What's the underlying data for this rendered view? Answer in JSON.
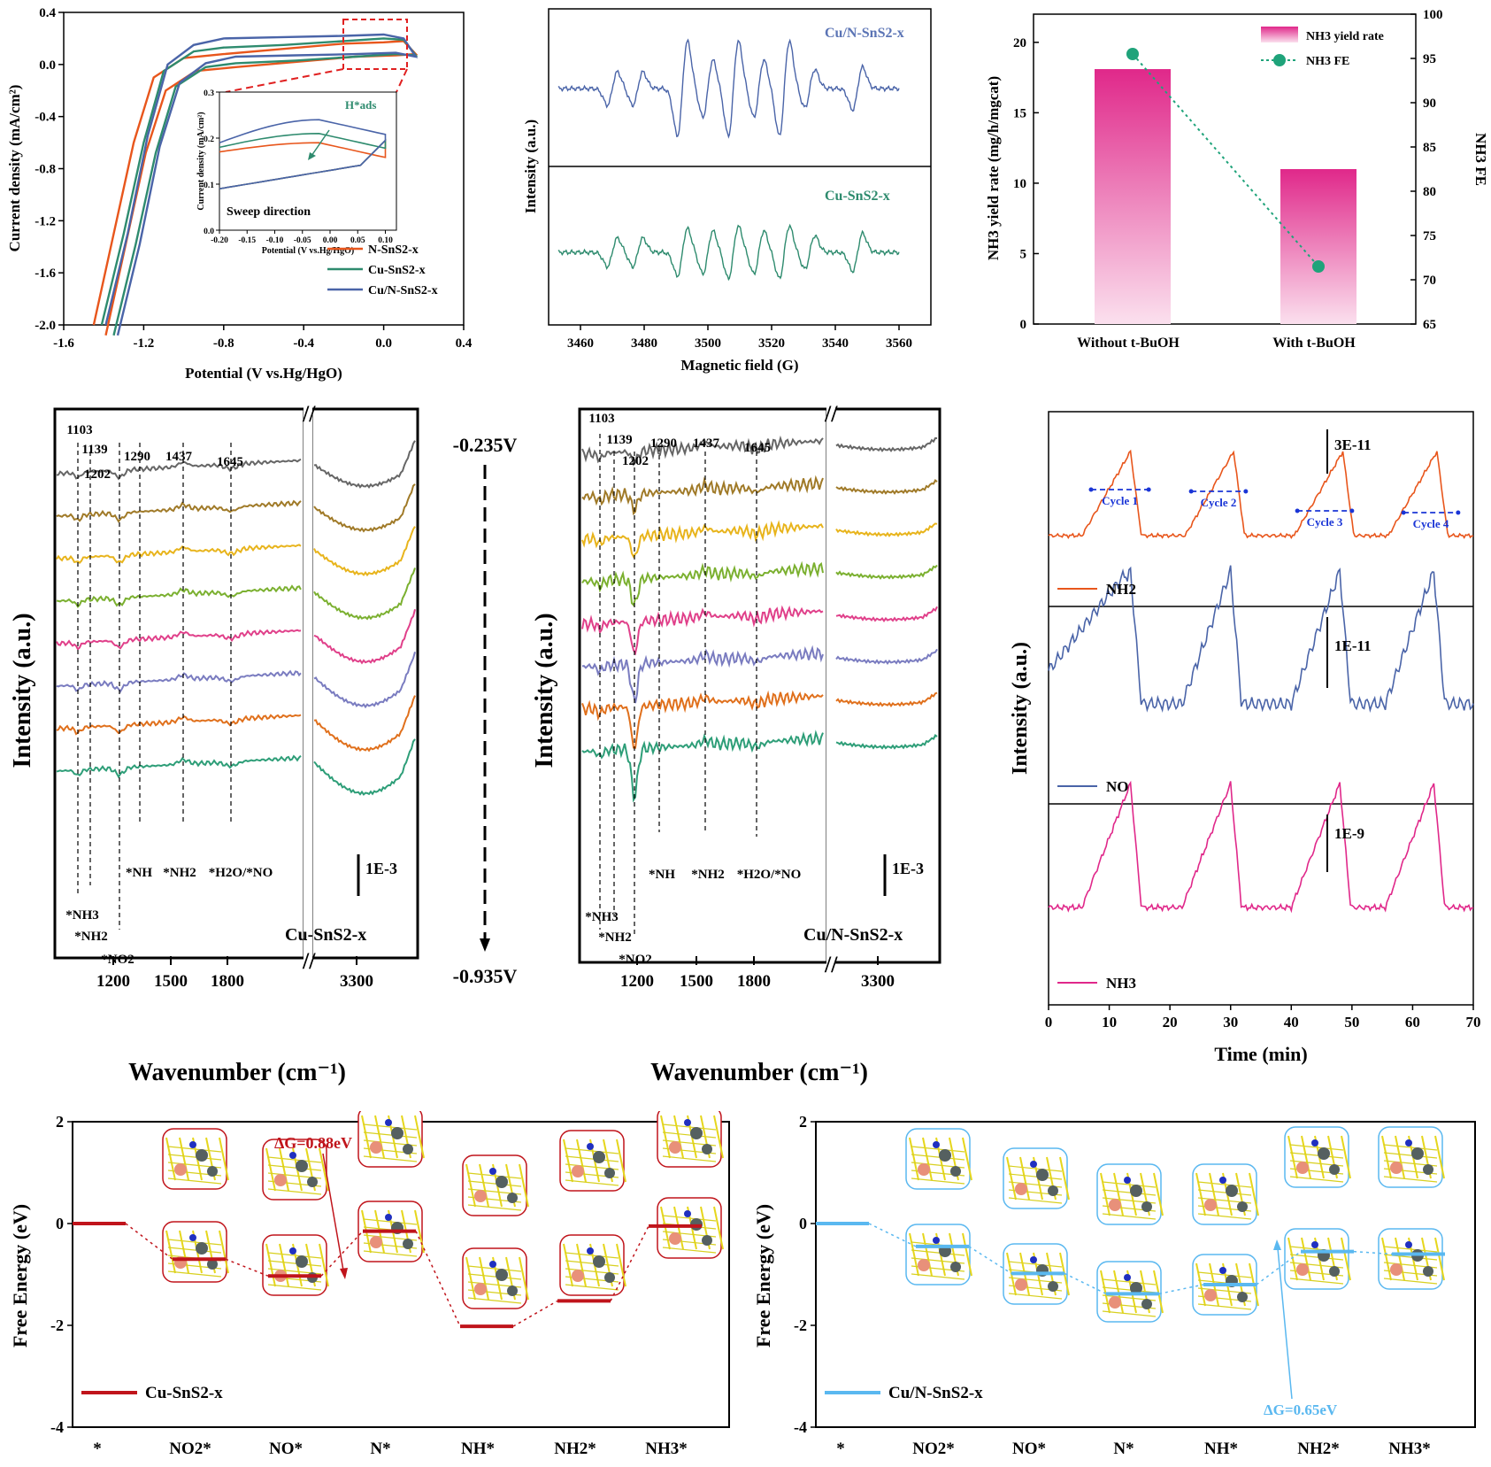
{
  "colors": {
    "nsns": "#e8561c",
    "cusns": "#2e8b6e",
    "cunsns": "#4a64a8",
    "pink": "#e0288a",
    "pink_light": "#f7c8e0",
    "green_dot": "#1fa37a",
    "blue_ed": "#5ab8f0",
    "red_ed": "#c0141b",
    "blue_text": "#5b74b5",
    "green_text": "#2e8b6e",
    "dashed_red": "#e02020"
  },
  "icons": [
    "molecular-structure-icon",
    "dashed-arrow-down-icon",
    "scale-bar-icon"
  ],
  "chart_data": [
    {
      "id": "cv",
      "type": "line",
      "xlabel": "Potential (V vs.Hg/HgO)",
      "ylabel": "Current density (mA/cm²)",
      "xlim": [
        -1.6,
        0.4
      ],
      "ylim": [
        -2.0,
        0.4
      ],
      "x_ticks": [
        "-1.6",
        "-1.2",
        "-0.8",
        "-0.4",
        "0.0",
        "0.4"
      ],
      "y_ticks": [
        "-2.0",
        "-1.6",
        "-1.2",
        "-0.8",
        "-0.4",
        "0.0",
        "0.4"
      ],
      "legend": [
        "N-SnS2-x",
        "Cu-SnS2-x",
        "Cu/N-SnS2-x"
      ],
      "legend_position": "bottom-right",
      "series": [
        {
          "name": "N-SnS2-x",
          "x": [
            -1.45,
            -1.35,
            -1.25,
            -1.15,
            -1.0,
            -0.8,
            -0.5,
            -0.2,
            0.0,
            0.1
          ],
          "y": [
            -2.0,
            -1.3,
            -0.6,
            -0.1,
            0.05,
            0.08,
            0.12,
            0.16,
            0.17,
            0.18
          ]
        },
        {
          "name": "Cu-SnS2-x",
          "x": [
            -1.41,
            -1.3,
            -1.2,
            -1.1,
            -0.95,
            -0.8,
            -0.5,
            -0.2,
            0.0,
            0.1
          ],
          "y": [
            -2.0,
            -1.3,
            -0.6,
            -0.05,
            0.1,
            0.13,
            0.15,
            0.18,
            0.2,
            0.19
          ]
        },
        {
          "name": "Cu/N-SnS2-x",
          "x": [
            -1.39,
            -1.28,
            -1.18,
            -1.08,
            -0.95,
            -0.8,
            -0.5,
            -0.2,
            0.0,
            0.1
          ],
          "y": [
            -2.0,
            -1.3,
            -0.55,
            -0.0,
            0.15,
            0.2,
            0.21,
            0.22,
            0.23,
            0.2
          ]
        }
      ],
      "inset": {
        "xlabel": "Potential (V vs.Hg/HgO)",
        "ylabel": "Current density (mA/cm²)",
        "xlim": [
          -0.2,
          0.12
        ],
        "ylim": [
          0.0,
          0.3
        ],
        "x_ticks": [
          "-0.20",
          "-0.15",
          "-0.10",
          "-0.05",
          "0.00",
          "0.05",
          "0.10"
        ],
        "y_ticks": [
          "0.0",
          "0.1",
          "0.2",
          "0.3"
        ],
        "annotations": [
          "Sweep direction",
          "H*ads"
        ]
      }
    },
    {
      "id": "epr",
      "type": "line",
      "xlabel": "Magnetic field (G)",
      "ylabel": "Intensity (a.u.)",
      "xlim": [
        3450,
        3570
      ],
      "x_ticks": [
        "3460",
        "3480",
        "3500",
        "3520",
        "3540",
        "3560"
      ],
      "line_positions": [
        3470,
        3478,
        3492,
        3500,
        3508,
        3516,
        3524,
        3532,
        3547
      ],
      "line_amplitudes_top": [
        0.35,
        0.35,
        1.0,
        0.6,
        1.0,
        0.6,
        1.0,
        0.4,
        0.45
      ],
      "line_amplitudes_bottom": [
        0.3,
        0.3,
        0.5,
        0.45,
        0.55,
        0.45,
        0.55,
        0.35,
        0.4
      ],
      "labels": [
        "Cu/N-SnS2-x",
        "Cu-SnS2-x"
      ]
    },
    {
      "id": "nh3",
      "type": "bar",
      "categories": [
        "Without t-BuOH",
        "With t-BuOH"
      ],
      "series": [
        {
          "name": "NH3 yield rate",
          "values": [
            18.1,
            11.0
          ]
        },
        {
          "name": "NH3 FE",
          "values": [
            95.5,
            71.5
          ]
        }
      ],
      "ylabel": "NH3 yield rate (mg/h/mgcat)",
      "y2label": "NH3 FE",
      "ylim": [
        0,
        22
      ],
      "y2lim": [
        65,
        100
      ],
      "y_ticks": [
        "0",
        "5",
        "10",
        "15",
        "20"
      ],
      "y2_ticks": [
        "65",
        "70",
        "75",
        "80",
        "85",
        "90",
        "95",
        "100"
      ],
      "legend_position": "top-right"
    },
    {
      "id": "ir_cu",
      "type": "line",
      "xlabel": "Wavenumber (cm⁻¹)",
      "ylabel": "Intensity (a.u.)",
      "x_ticks": [
        "1200",
        "1500",
        "1800",
        "3300"
      ],
      "peaks": [
        "1103",
        "1139",
        "1202",
        "1290",
        "1437",
        "1645"
      ],
      "species": [
        "*NH3",
        "*NH2",
        "*NO2",
        "*NH",
        "*NH2",
        "*H2O/*NO"
      ],
      "scale": "1E-3",
      "sample": "Cu-SnS2-x",
      "n_spectra": 8
    },
    {
      "id": "ir_cun",
      "type": "line",
      "xlabel": "Wavenumber (cm⁻¹)",
      "ylabel": "Intensity (a.u.)",
      "x_ticks": [
        "1200",
        "1500",
        "1800",
        "3300"
      ],
      "peaks": [
        "1103",
        "1139",
        "1202",
        "1290",
        "1437",
        "1645"
      ],
      "species": [
        "*NH3",
        "*NH2",
        "*NO2",
        "*NH",
        "*NH2",
        "*H2O/*NO"
      ],
      "scale": "1E-3",
      "sample": "Cu/N-SnS2-x",
      "n_spectra": 8
    },
    {
      "id": "dems",
      "type": "line",
      "xlabel": "Time (min)",
      "ylabel": "Intensity (a.u.)",
      "xlim": [
        0,
        70
      ],
      "x_ticks": [
        "0",
        "10",
        "20",
        "30",
        "40",
        "50",
        "60",
        "70"
      ],
      "series": [
        {
          "name": "NH2",
          "scale": "3E-11",
          "peaks_at": [
            13.5,
            30.5,
            48.5,
            64
          ]
        },
        {
          "name": "NO",
          "scale": "1E-11",
          "peaks_at": [
            13.5,
            30.0,
            48.0,
            63.5
          ]
        },
        {
          "name": "NH3",
          "scale": "1E-9",
          "peaks_at": [
            13.5,
            30.0,
            48.0,
            63.5
          ]
        }
      ],
      "cycles": [
        "Cycle 1",
        "Cycle 2",
        "Cycle 3",
        "Cycle 4"
      ]
    },
    {
      "id": "fe_cu",
      "type": "line",
      "xlabel": "",
      "ylabel": "Free Energy (eV)",
      "categories": [
        "*",
        "NO2*",
        "NO*",
        "N*",
        "NH*",
        "NH2*",
        "NH3*"
      ],
      "values": [
        0.0,
        -0.7,
        -1.03,
        -0.15,
        -2.02,
        -1.52,
        -0.05
      ],
      "ylim": [
        -4,
        2
      ],
      "y_ticks": [
        "2",
        "0",
        "-2",
        "-4"
      ],
      "annotation": "ΔG=0.88eV",
      "legend": "Cu-SnS2-x"
    },
    {
      "id": "fe_cun",
      "type": "line",
      "xlabel": "",
      "ylabel": "Free Energy (eV)",
      "categories": [
        "*",
        "NO2*",
        "NO*",
        "N*",
        "NH*",
        "NH2*",
        "NH3*"
      ],
      "values": [
        0.0,
        -0.45,
        -0.98,
        -1.38,
        -1.2,
        -0.55,
        -0.6
      ],
      "ylim": [
        -4,
        2
      ],
      "y_ticks": [
        "2",
        "0",
        "-2",
        "-4"
      ],
      "annotation": "ΔG=0.65eV",
      "legend": "Cu/N-SnS2-x"
    }
  ],
  "text": {
    "arrow_top": "-0.235V",
    "arrow_bottom": "-0.935V",
    "cycle_labels": [
      "Cycle 1",
      "Cycle 2",
      "Cycle 3",
      "Cycle 4"
    ]
  }
}
